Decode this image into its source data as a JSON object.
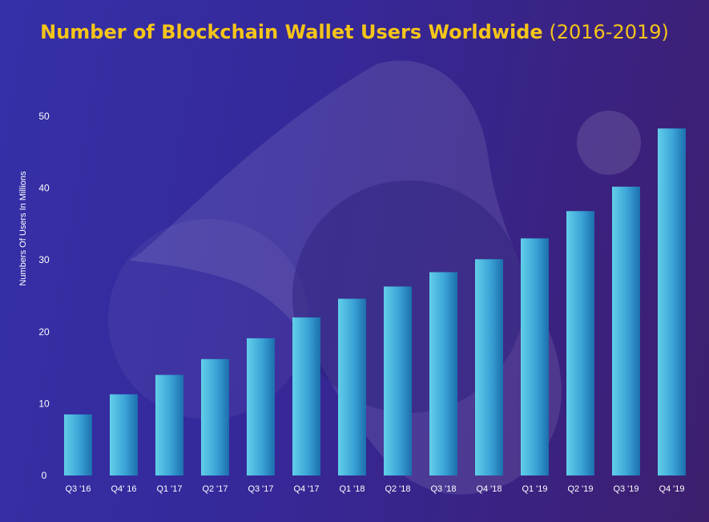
{
  "title": {
    "main": "Number of Blockchain Wallet Users Worldwide",
    "sub": "(2016-2019)"
  },
  "colors": {
    "title": "#f5c518",
    "bar_light": "#5ecae6",
    "bar_dark": "#1f78b4",
    "text": "#ffffff"
  },
  "chart_data": {
    "type": "bar",
    "title": "Number of Blockchain Wallet Users Worldwide (2016-2019)",
    "ylabel": "Numbers Of Users In Millions",
    "xlabel": "",
    "ylim": [
      0,
      50
    ],
    "yticks": [
      0,
      10,
      20,
      30,
      40,
      50
    ],
    "grid": false,
    "legend": "none",
    "categories": [
      "Q3 '16",
      "Q4' 16",
      "Q1 '17",
      "Q2 '17",
      "Q3 '17",
      "Q4 '17",
      "Q1 '18",
      "Q2 '18",
      "Q3 '18",
      "Q4 '18",
      "Q1 '19",
      "Q2 '19",
      "Q3 '19",
      "Q4 '19"
    ],
    "values": [
      8.5,
      11.3,
      14.0,
      16.2,
      19.1,
      22.0,
      24.6,
      26.3,
      28.3,
      30.1,
      33.0,
      36.8,
      40.2,
      48.3
    ]
  }
}
